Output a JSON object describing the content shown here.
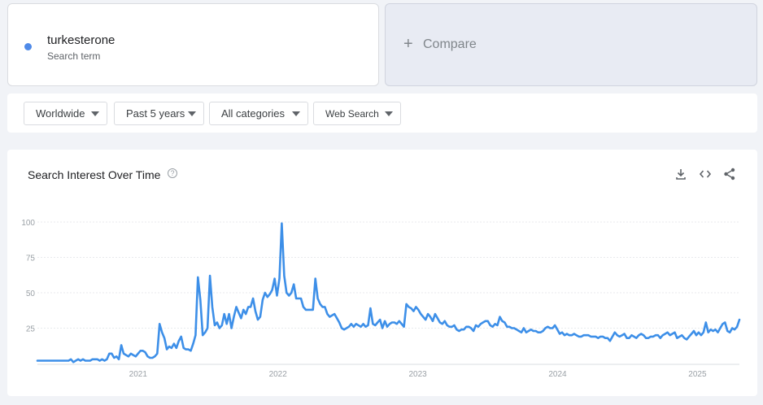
{
  "search_term": {
    "name": "turkesterone",
    "subtitle": "Search term",
    "color": "#4f8ae8"
  },
  "compare": {
    "label": "Compare",
    "icon": "plus-icon"
  },
  "filters": {
    "region": "Worldwide",
    "time_range": "Past 5 years",
    "category": "All categories",
    "search_type": "Web Search"
  },
  "panel": {
    "title": "Search Interest Over Time",
    "tools": [
      "download-icon",
      "embed-code-icon",
      "share-icon"
    ]
  },
  "colors": {
    "line": "#3d8fe8",
    "grid": "#e8eaed",
    "tick": "#9aa0a6"
  },
  "chart_data": {
    "type": "line",
    "title": "",
    "xlabel": "",
    "ylabel": "",
    "ylim": [
      0,
      100
    ],
    "yticks": [
      "25",
      "50",
      "75",
      "100"
    ],
    "xticks": [
      {
        "label": "2021",
        "x": 2021.0
      },
      {
        "label": "2022",
        "x": 2022.0
      },
      {
        "label": "2023",
        "x": 2023.0
      },
      {
        "label": "2024",
        "x": 2024.0
      },
      {
        "label": "2025",
        "x": 2025.0
      }
    ],
    "grid": true,
    "legend": "none",
    "series": [
      {
        "x_start": 2020.28,
        "x_end": 2025.3,
        "values": [
          2,
          2,
          2,
          2,
          2,
          2,
          2,
          2,
          2,
          2,
          2,
          2,
          2,
          2,
          3,
          1,
          2,
          3,
          2,
          3,
          2,
          2,
          2,
          3,
          3,
          3,
          2,
          3,
          2,
          3,
          7,
          7,
          4,
          5,
          3,
          13,
          7,
          6,
          5,
          7,
          6,
          5,
          7,
          9,
          9,
          8,
          5,
          4,
          4,
          5,
          7,
          28,
          22,
          18,
          10,
          12,
          11,
          14,
          11,
          16,
          19,
          11,
          10,
          10,
          9,
          14,
          20,
          61,
          45,
          20,
          22,
          25,
          62,
          40,
          27,
          29,
          25,
          27,
          35,
          28,
          35,
          25,
          33,
          40,
          36,
          32,
          38,
          35,
          40,
          40,
          46,
          37,
          31,
          33,
          45,
          50,
          47,
          49,
          52,
          60,
          48,
          60,
          99,
          62,
          50,
          48,
          50,
          56,
          46,
          46,
          46,
          40,
          38,
          38,
          38,
          38,
          60,
          46,
          42,
          40,
          40,
          35,
          33,
          34,
          35,
          32,
          29,
          25,
          24,
          25,
          26,
          28,
          26,
          28,
          27,
          26,
          28,
          26,
          27,
          39,
          28,
          27,
          29,
          31,
          25,
          30,
          26,
          28,
          29,
          29,
          28,
          30,
          28,
          26,
          42,
          40,
          39,
          37,
          40,
          38,
          35,
          33,
          31,
          35,
          33,
          30,
          35,
          32,
          29,
          28,
          30,
          27,
          26,
          26,
          27,
          24,
          23,
          24,
          24,
          26,
          26,
          25,
          23,
          27,
          26,
          28,
          29,
          30,
          30,
          27,
          26,
          28,
          27,
          33,
          30,
          29,
          26,
          26,
          25,
          25,
          24,
          23,
          22,
          25,
          22,
          23,
          24,
          23,
          23,
          22,
          22,
          23,
          25,
          26,
          25,
          25,
          27,
          24,
          21,
          22,
          20,
          21,
          20,
          20,
          21,
          20,
          19,
          19,
          20,
          20,
          20,
          19,
          19,
          19,
          18,
          19,
          19,
          18,
          18,
          16,
          19,
          22,
          20,
          19,
          20,
          21,
          18,
          18,
          20,
          19,
          18,
          20,
          21,
          20,
          18,
          18,
          19,
          19,
          20,
          20,
          18,
          20,
          21,
          22,
          20,
          21,
          22,
          18,
          19,
          20,
          18,
          17,
          19,
          21,
          23,
          20,
          22,
          20,
          22,
          29,
          22,
          24,
          23,
          24,
          22,
          25,
          28,
          29,
          23,
          22,
          25,
          24,
          26,
          31
        ]
      }
    ]
  }
}
